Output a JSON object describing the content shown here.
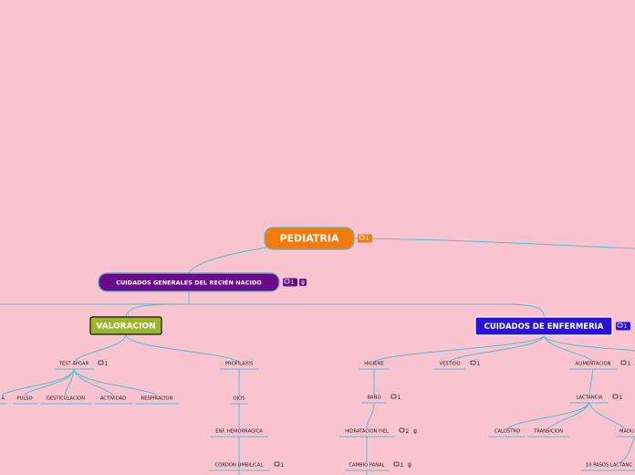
{
  "nodes": [
    {
      "label": "PEDIATRIA",
      "comments": 1
    },
    {
      "label": "CUIDADOS GENERALES DEL RECIÉN NACIDO",
      "comments": 1
    },
    {
      "label": "VALORACION"
    },
    {
      "label": "CUIDADOS DE ENFERMERIA",
      "comments": 1
    },
    {
      "label": "TEST APGAR",
      "comments": 1
    },
    {
      "label": "PROFILAXIS"
    },
    {
      "label": "A"
    },
    {
      "label": "PULSO"
    },
    {
      "label": "GESTICULACION"
    },
    {
      "label": "ACTIVIDAD"
    },
    {
      "label": "RESPIRACION"
    },
    {
      "label": "OJOS"
    },
    {
      "label": "ENF. HEMORRAGICA"
    },
    {
      "label": "CORDON UMBILICAL",
      "comments": 1
    },
    {
      "label": "HIGIENE"
    },
    {
      "label": "VESTIDO",
      "comments": 1
    },
    {
      "label": "ALIMENTACION",
      "comments": 1
    },
    {
      "label": "BAÑO",
      "comments": 1
    },
    {
      "label": "LACTANCIA",
      "comments": 1
    },
    {
      "label": "HIDRATACION PIEL",
      "comments": 2
    },
    {
      "label": "CALOSTRO"
    },
    {
      "label": "TRANSICION"
    },
    {
      "label": "MADU"
    },
    {
      "label": "CAMBIO PAÑAL",
      "comments": 1
    },
    {
      "label": "10 PASOS LACTANC"
    }
  ]
}
